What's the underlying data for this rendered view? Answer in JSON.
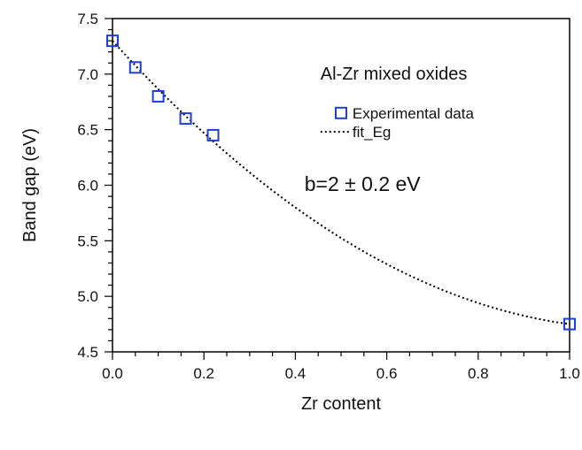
{
  "chart_data": {
    "type": "scatter",
    "title": "",
    "xlabel": "Zr content",
    "ylabel": "Band gap (eV)",
    "xlim": [
      0.0,
      1.0
    ],
    "ylim": [
      4.5,
      7.5
    ],
    "xticks": [
      "0.0",
      "0.2",
      "0.4",
      "0.6",
      "0.8",
      "1.0"
    ],
    "xtick_values": [
      0.0,
      0.2,
      0.4,
      0.6,
      0.8,
      1.0
    ],
    "yticks": [
      "4.5",
      "5.0",
      "5.5",
      "6.0",
      "6.5",
      "7.0",
      "7.5"
    ],
    "ytick_values": [
      4.5,
      5.0,
      5.5,
      6.0,
      6.5,
      7.0,
      7.5
    ],
    "x_minor_step": 0.05,
    "y_minor_step": 0.1,
    "grid": false,
    "legend_position": "upper-right",
    "series": [
      {
        "name": "Experimental data",
        "kind": "scatter",
        "marker": "open-square",
        "color": "#1f3fd6",
        "x": [
          0.0,
          0.05,
          0.1,
          0.16,
          0.22,
          1.0
        ],
        "y": [
          7.3,
          7.06,
          6.8,
          6.6,
          6.45,
          4.75
        ]
      },
      {
        "name": "fit_Eg",
        "kind": "line",
        "style": "dotted",
        "color": "#000000",
        "model": {
          "form": "Eg(x) = (1-x)*Eg0 + x*Eg1 - b*x*(1-x)",
          "Eg0": 7.3,
          "Eg1": 4.75,
          "b": 2.0
        }
      }
    ],
    "annotations": [
      {
        "text": "Al-Zr mixed oxides"
      },
      {
        "text": "b=2 ± 0.2 eV"
      }
    ]
  }
}
